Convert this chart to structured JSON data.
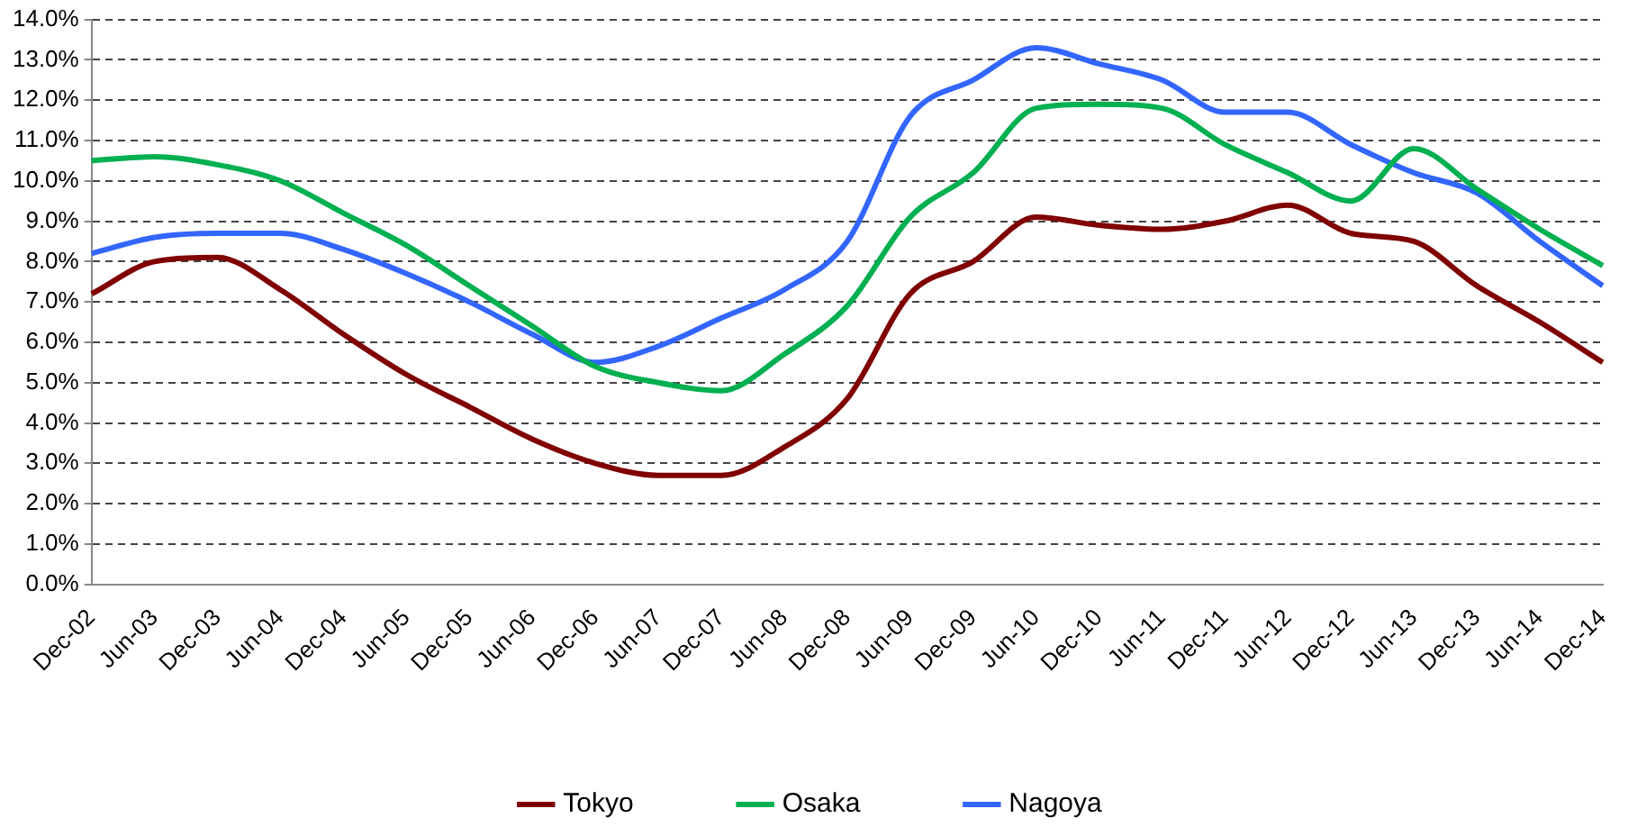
{
  "chart_data": {
    "type": "line",
    "categories": [
      "Dec-02",
      "Jun-03",
      "Dec-03",
      "Jun-04",
      "Dec-04",
      "Jun-05",
      "Dec-05",
      "Jun-06",
      "Dec-06",
      "Jun-07",
      "Dec-07",
      "Jun-08",
      "Dec-08",
      "Jun-09",
      "Dec-09",
      "Jun-10",
      "Dec-10",
      "Jun-11",
      "Dec-11",
      "Jun-12",
      "Dec-12",
      "Jun-13",
      "Dec-13",
      "Jun-14",
      "Dec-14"
    ],
    "series": [
      {
        "name": "Tokyo",
        "color": "#800000",
        "values": [
          7.2,
          8.0,
          8.1,
          7.3,
          6.2,
          5.2,
          4.4,
          3.6,
          3.0,
          2.7,
          2.7,
          3.4,
          4.6,
          7.2,
          8.0,
          9.1,
          8.9,
          8.8,
          9.0,
          9.4,
          8.7,
          8.5,
          7.4,
          6.5,
          5.5
        ]
      },
      {
        "name": "Osaka",
        "color": "#00b050",
        "values": [
          10.5,
          10.6,
          10.4,
          10.0,
          9.2,
          8.4,
          7.4,
          6.4,
          5.4,
          5.0,
          4.8,
          5.7,
          6.9,
          9.1,
          10.2,
          11.8,
          11.9,
          11.8,
          10.9,
          10.2,
          9.5,
          10.8,
          9.8,
          8.8,
          7.9
        ]
      },
      {
        "name": "Nagoya",
        "color": "#3366ff",
        "values": [
          8.2,
          8.6,
          8.7,
          8.7,
          8.3,
          7.7,
          7.0,
          6.2,
          5.5,
          5.9,
          6.6,
          7.3,
          8.5,
          11.6,
          12.5,
          13.3,
          12.9,
          12.5,
          11.7,
          11.7,
          10.9,
          10.2,
          9.7,
          8.5,
          7.4
        ]
      }
    ],
    "ylim": [
      0,
      14
    ],
    "yticks": [
      {
        "value": 0,
        "label": "0.0%"
      },
      {
        "value": 1,
        "label": "1.0%"
      },
      {
        "value": 2,
        "label": "2.0%"
      },
      {
        "value": 3,
        "label": "3.0%"
      },
      {
        "value": 4,
        "label": "4.0%"
      },
      {
        "value": 5,
        "label": "5.0%"
      },
      {
        "value": 6,
        "label": "6.0%"
      },
      {
        "value": 7,
        "label": "7.0%"
      },
      {
        "value": 8,
        "label": "8.0%"
      },
      {
        "value": 9,
        "label": "9.0%"
      },
      {
        "value": 10,
        "label": "10.0%"
      },
      {
        "value": 11,
        "label": "11.0%"
      },
      {
        "value": 12,
        "label": "12.0%"
      },
      {
        "value": 13,
        "label": "13.0%"
      },
      {
        "value": 14,
        "label": "14.0%"
      }
    ],
    "grid": "y",
    "legend": "bottom",
    "marker": "none",
    "line_style": "solid"
  }
}
